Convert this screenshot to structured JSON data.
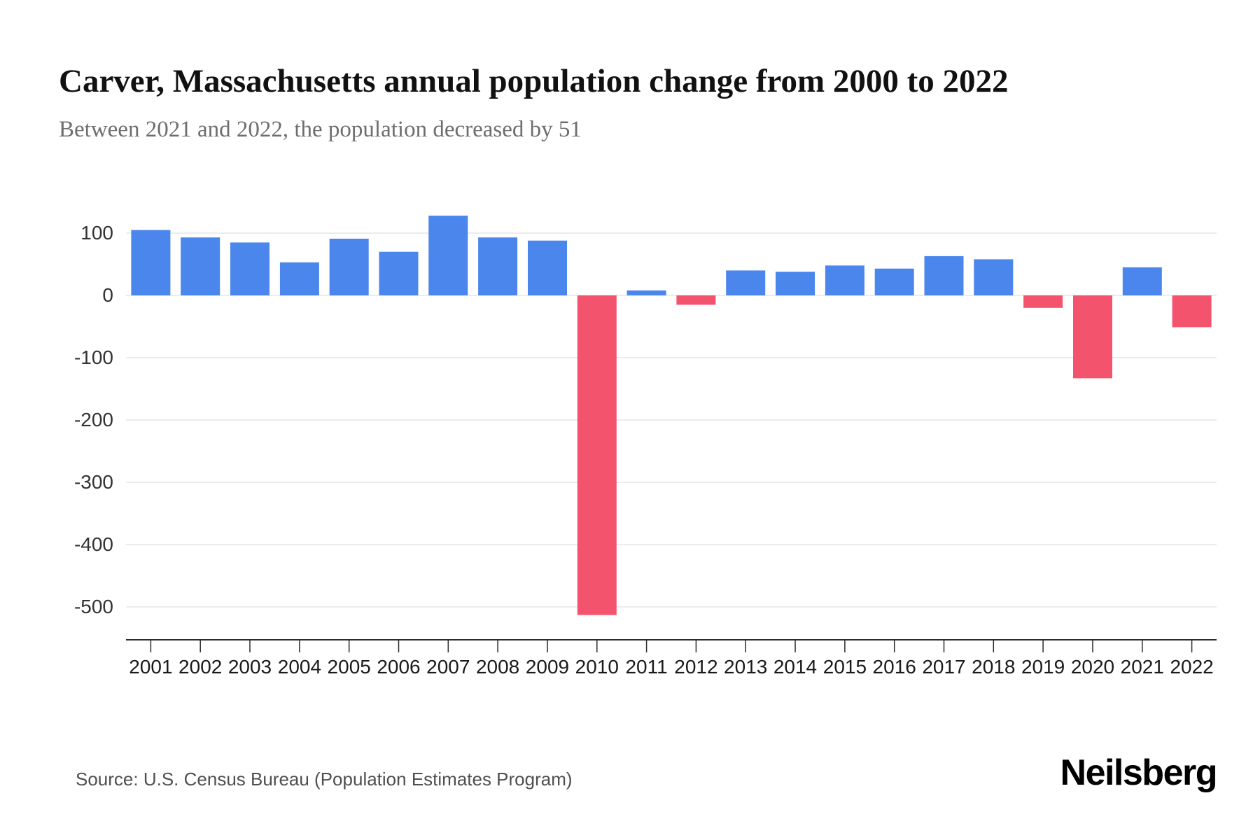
{
  "header": {
    "title": "Carver, Massachusetts annual population change from 2000 to 2022",
    "subtitle": "Between 2021 and 2022, the population decreased by 51"
  },
  "footer": {
    "source": "Source: U.S. Census Bureau (Population Estimates Program)",
    "logo": "Neilsberg"
  },
  "chart_data": {
    "type": "bar",
    "title": "Carver, Massachusetts annual population change from 2000 to 2022",
    "subtitle": "Between 2021 and 2022, the population decreased by 51",
    "categories": [
      "2001",
      "2002",
      "2003",
      "2004",
      "2005",
      "2006",
      "2007",
      "2008",
      "2009",
      "2010",
      "2011",
      "2012",
      "2013",
      "2014",
      "2015",
      "2016",
      "2017",
      "2018",
      "2019",
      "2020",
      "2021",
      "2022"
    ],
    "values": [
      105,
      93,
      85,
      53,
      91,
      70,
      128,
      93,
      88,
      -513,
      8,
      -15,
      40,
      38,
      48,
      43,
      63,
      58,
      -20,
      -133,
      45,
      -51
    ],
    "xlabel": "",
    "ylabel": "",
    "ylim": [
      -560,
      150
    ],
    "yticks": [
      100,
      0,
      -100,
      -200,
      -300,
      -400,
      -500
    ],
    "grid": true,
    "legend": "none",
    "colors": {
      "positive": "#4a86ec",
      "negative": "#f4536e",
      "gridline": "#e6e6e6",
      "axis": "#2b2b2b",
      "tick_label": "#333333",
      "year_label": "#1a1a1a"
    }
  }
}
